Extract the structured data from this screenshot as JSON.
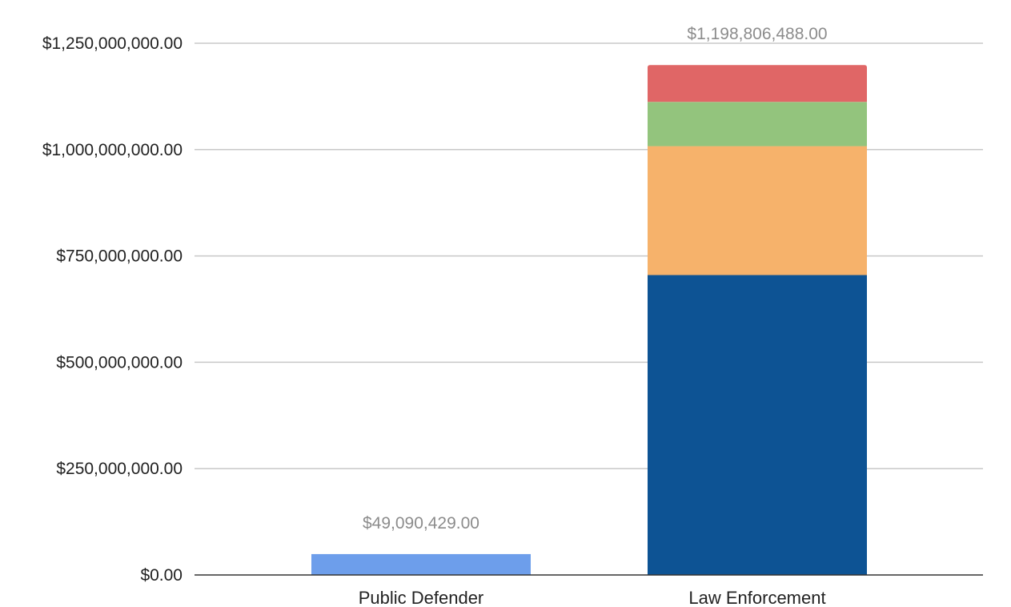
{
  "chart_data": {
    "type": "stacked-bar",
    "title": "",
    "xlabel": "",
    "ylabel": "",
    "ylim": [
      0,
      1250000000
    ],
    "yticks": [
      0,
      250000000,
      500000000,
      750000000,
      1000000000,
      1250000000
    ],
    "ytick_labels": [
      "$0.00",
      "$250,000,000.00",
      "$500,000,000.00",
      "$750,000,000.00",
      "$1,000,000,000.00",
      "$1,250,000,000.00"
    ],
    "grid": true,
    "legend": "none",
    "categories": [
      "Public Defender",
      "Law Enforcement"
    ],
    "totals": [
      "$49,090,429.00",
      "$1,198,806,488.00"
    ],
    "bars": [
      {
        "segments": [
          {
            "value": 49090429,
            "color": "#6d9eeb"
          }
        ]
      },
      {
        "segments": [
          {
            "value": 705000000,
            "color": "#0d5394"
          },
          {
            "value": 303000000,
            "color": "#f6b26b"
          },
          {
            "value": 104000000,
            "color": "#93c47d"
          },
          {
            "value": 86806488,
            "color": "#e06666"
          }
        ]
      }
    ]
  }
}
